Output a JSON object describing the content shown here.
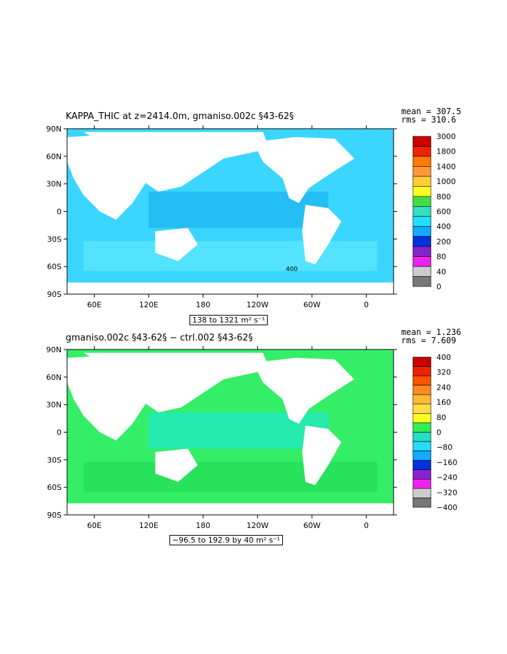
{
  "panels": [
    {
      "title": "KAPPA_THIC at z=2414.0m, gmaniso.002c §43-62§",
      "mean": "mean = 307.5",
      "rms": "rms = 310.6",
      "range": "138 to 1321 m² s⁻¹",
      "contour_label": "400",
      "lat_labels": [
        "90N",
        "60N",
        "30N",
        "0",
        "30S",
        "60S",
        "90S"
      ],
      "lon_labels": [
        "60E",
        "120E",
        "180",
        "120W",
        "60W",
        "0"
      ],
      "colorbar_labels": [
        "3000",
        "1800",
        "1400",
        "1000",
        "800",
        "600",
        "400",
        "200",
        "80",
        "40",
        "0"
      ],
      "colorbar_colors": [
        "#cc0000",
        "#ee2200",
        "#ff7a00",
        "#ff9933",
        "#ffcc33",
        "#ffff22",
        "#44dd44",
        "#33e0c0",
        "#22e0ff",
        "#11aaff",
        "#0033dd",
        "#8822cc",
        "#ee22ee",
        "#cccccc",
        "#777777"
      ],
      "palette": {
        "ocean_base": "#3ad6ff",
        "band_1": "#21b8f0",
        "band_2": "#5ee8ff"
      }
    },
    {
      "title": "gmaniso.002c §43-62§ − ctrl.002 §43-62§",
      "mean": "mean = 1.236",
      "rms": "rms = 7.609",
      "range": "−96.5 to 192.9 by 40 m² s⁻¹",
      "lat_labels": [
        "90N",
        "60N",
        "30N",
        "0",
        "30S",
        "60S",
        "90S"
      ],
      "lon_labels": [
        "60E",
        "120E",
        "180",
        "120W",
        "60W",
        "0"
      ],
      "colorbar_labels": [
        "400",
        "320",
        "240",
        "160",
        "80",
        "0",
        "−80",
        "−160",
        "−240",
        "−320",
        "−400"
      ],
      "colorbar_colors": [
        "#cc0000",
        "#ee2200",
        "#ff5500",
        "#ff8a22",
        "#ffbb33",
        "#ffdd44",
        "#ffff22",
        "#33ee55",
        "#22e0c0",
        "#22ddff",
        "#11aaff",
        "#0033dd",
        "#8822cc",
        "#ee22ee",
        "#cccccc",
        "#777777"
      ],
      "palette": {
        "ocean_base": "#33ee66",
        "band_1": "#22e8c0",
        "band_2": "#22dd55"
      }
    }
  ]
}
